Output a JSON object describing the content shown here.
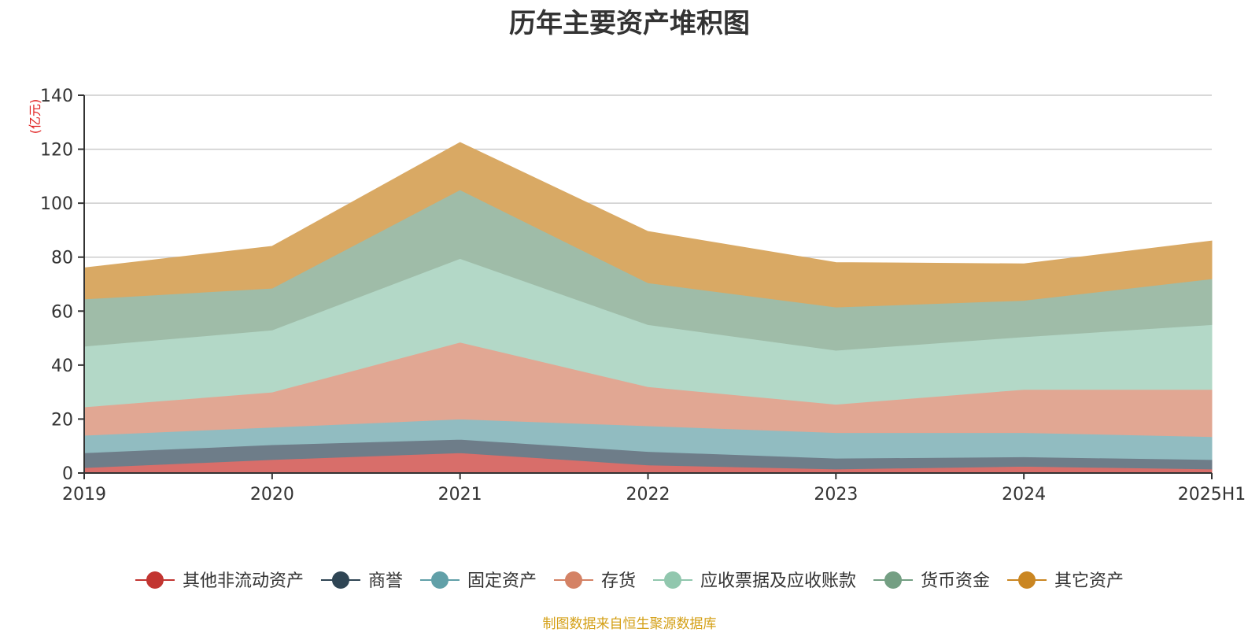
{
  "chart_data": {
    "type": "area",
    "stacked": true,
    "title": "历年主要资产堆积图",
    "unit_label": "(亿元)",
    "x": [
      "2019",
      "2020",
      "2021",
      "2022",
      "2023",
      "2024",
      "2025H1"
    ],
    "ylim": [
      0,
      140
    ],
    "yticks": [
      0,
      20,
      40,
      60,
      80,
      100,
      120,
      140
    ],
    "grid": true,
    "legend_position": "bottom",
    "series": [
      {
        "name": "其他非流动资产",
        "color": "#c23531",
        "fill": "#d86e6a",
        "values": [
          2,
          5,
          7.5,
          3,
          1.5,
          2.5,
          1.5
        ]
      },
      {
        "name": "商誉",
        "color": "#2f4554",
        "fill": "#6e7d89",
        "values": [
          5.5,
          5.5,
          5,
          5,
          4,
          3.5,
          3.5
        ]
      },
      {
        "name": "固定资产",
        "color": "#61a0a8",
        "fill": "#91bcc1",
        "values": [
          6.5,
          6.5,
          7.5,
          9.5,
          9.5,
          9,
          8.5
        ]
      },
      {
        "name": "存货",
        "color": "#d48265",
        "fill": "#e1a793",
        "values": [
          10.5,
          13,
          28.5,
          14.5,
          10.5,
          16,
          17.5
        ]
      },
      {
        "name": "应收票据及应收账款",
        "color": "#91c7ae",
        "fill": "#b3d8c7",
        "values": [
          22.5,
          23,
          31,
          23,
          20,
          19.5,
          24
        ]
      },
      {
        "name": "货币资金",
        "color": "#749f83",
        "fill": "#9fbca8",
        "values": [
          17.5,
          15.5,
          25.5,
          15.5,
          16,
          13.5,
          17
        ]
      },
      {
        "name": "其它资产",
        "color": "#ca8622",
        "fill": "#d9a964",
        "values": [
          11.5,
          15.5,
          17.5,
          19,
          16.5,
          13.5,
          14
        ]
      }
    ]
  },
  "source_note": "制图数据来自恒生聚源数据库"
}
